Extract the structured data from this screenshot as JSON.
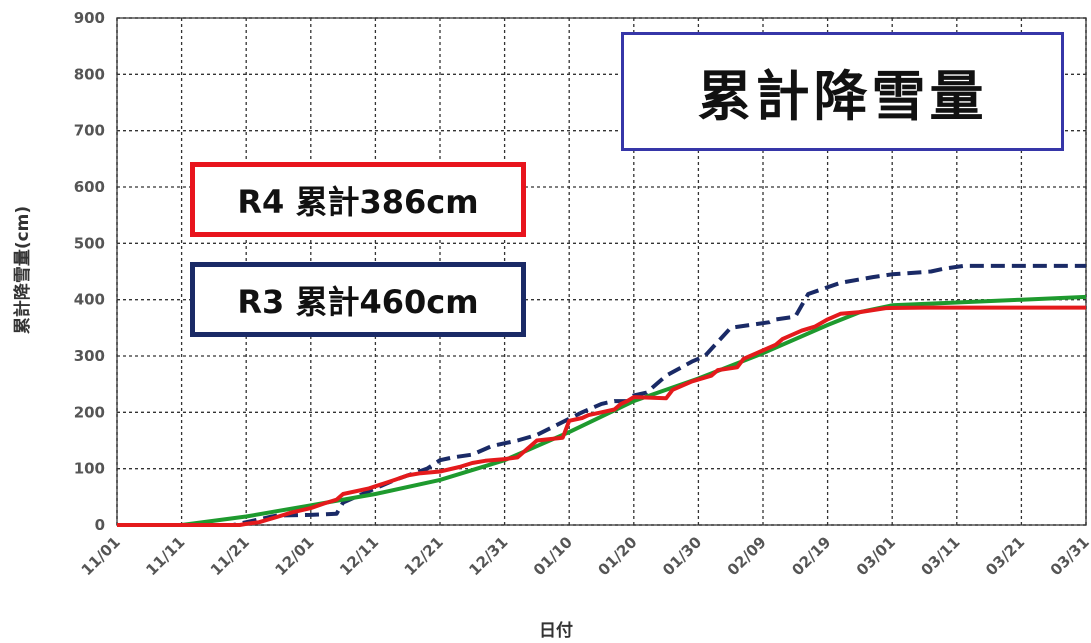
{
  "chart_data": {
    "type": "line",
    "title": "累計降雪量",
    "xlabel": "日付",
    "ylabel": "累計降雪量(cm)",
    "ylim": [
      0,
      900
    ],
    "yticks": [
      "0",
      "100",
      "200",
      "300",
      "400",
      "500",
      "600",
      "700",
      "800",
      "900"
    ],
    "xtick_labels": [
      "11/01",
      "11/11",
      "11/21",
      "12/01",
      "12/11",
      "12/21",
      "12/31",
      "01/10",
      "01/20",
      "01/30",
      "02/09",
      "02/19",
      "03/01",
      "03/11",
      "03/21",
      "03/31"
    ],
    "x_unit": "days since 11/01",
    "grid": true,
    "legend": [
      {
        "label": "R4 累計386cm",
        "color": "#e8141d"
      },
      {
        "label": "R3 累計460cm",
        "color": "#1a2a66"
      }
    ],
    "series": [
      {
        "name": "R4",
        "color": "#e41a1c",
        "style": "solid",
        "x": [
          0,
          19,
          20,
          22,
          25,
          27,
          30,
          32,
          34,
          35,
          39,
          43,
          45,
          47,
          50,
          53,
          55,
          57,
          60,
          62,
          65,
          69,
          70,
          72,
          73,
          75,
          77,
          78,
          79,
          80,
          85,
          86,
          89,
          92,
          93,
          96,
          97,
          99,
          102,
          103,
          106,
          108,
          110,
          112,
          115,
          119,
          125,
          130,
          150
        ],
        "y": [
          0,
          0,
          2,
          5,
          15,
          22,
          30,
          38,
          45,
          55,
          65,
          80,
          88,
          92,
          95,
          103,
          110,
          114,
          117,
          120,
          150,
          155,
          185,
          190,
          195,
          200,
          205,
          215,
          220,
          227,
          225,
          240,
          255,
          265,
          275,
          280,
          295,
          305,
          320,
          330,
          345,
          352,
          365,
          375,
          378,
          385,
          386,
          386,
          386
        ]
      },
      {
        "name": "R3",
        "color": "#1a2a66",
        "style": "dashed",
        "x": [
          0,
          18,
          20,
          24,
          25,
          30,
          34,
          35,
          43,
          48,
          50,
          52,
          55,
          58,
          62,
          65,
          72,
          75,
          77,
          79,
          80,
          82,
          85,
          89,
          91,
          95,
          101,
          102,
          105,
          107,
          112,
          117,
          120,
          126,
          128,
          131,
          140,
          150
        ],
        "y": [
          0,
          0,
          5,
          15,
          17,
          18,
          20,
          40,
          80,
          100,
          115,
          120,
          125,
          140,
          150,
          160,
          200,
          215,
          220,
          220,
          230,
          235,
          265,
          290,
          300,
          350,
          360,
          365,
          370,
          410,
          430,
          440,
          445,
          450,
          455,
          460,
          460,
          460
        ]
      },
      {
        "name": "",
        "color": "#1e9a2e",
        "style": "solid",
        "x": [
          0,
          10,
          20,
          30,
          40,
          50,
          60,
          70,
          80,
          90,
          100,
          110,
          115,
          120,
          130,
          140,
          150
        ],
        "y": [
          0,
          0,
          15,
          35,
          55,
          80,
          115,
          165,
          220,
          260,
          305,
          355,
          378,
          390,
          395,
          400,
          405
        ]
      }
    ]
  },
  "labels": {
    "title_box": "累計降雪量",
    "r4_box": "R4 累計386cm",
    "r3_box": "R3 累計460cm"
  }
}
